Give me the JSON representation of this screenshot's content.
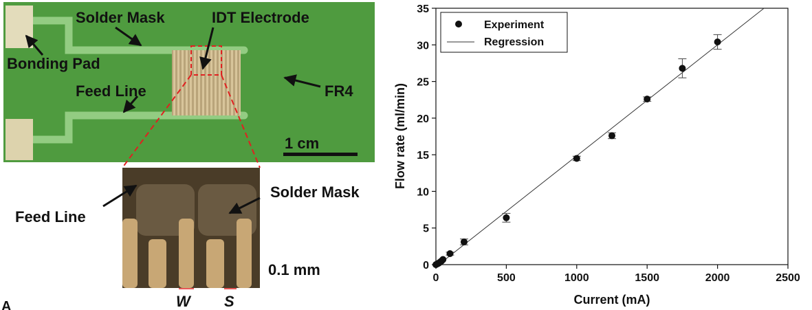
{
  "photo": {
    "labels": {
      "solder_mask": "Solder Mask",
      "idt_electrode": "IDT Electrode",
      "bonding_pad": "Bonding Pad",
      "feed_line": "Feed Line",
      "fr4": "FR4",
      "scale": "1 cm"
    },
    "colors": {
      "board": "#4e9a3f",
      "trace": "#8ec77e",
      "pad": "#d9d2b0",
      "idt": "#c9b68c"
    }
  },
  "micro": {
    "labels": {
      "feed_line": "Feed Line",
      "solder_mask": "Solder Mask",
      "scale": "0.1 mm",
      "w": "W",
      "s": "S"
    },
    "colors": {
      "background": "#5a4a32",
      "finger": "#c9ab7a",
      "mask": "#6f5e45"
    }
  },
  "panel_letter": "A",
  "chart_data": {
    "type": "scatter",
    "xlabel": "Current (mA)",
    "ylabel": "Flow rate (ml/min)",
    "xlim": [
      0,
      2500
    ],
    "ylim": [
      0,
      35
    ],
    "xticks": [
      0,
      500,
      1000,
      1500,
      2000,
      2500
    ],
    "yticks": [
      0,
      5,
      10,
      15,
      20,
      25,
      30,
      35
    ],
    "grid": false,
    "legend_placement": "top-left",
    "series": [
      {
        "name": "Experiment",
        "kind": "points",
        "x": [
          0,
          10,
          20,
          30,
          40,
          50,
          100,
          200,
          500,
          1000,
          1250,
          1500,
          1750,
          2000
        ],
        "y": [
          0.0,
          0.1,
          0.2,
          0.35,
          0.5,
          0.7,
          1.5,
          3.1,
          6.4,
          14.5,
          17.6,
          22.6,
          26.8,
          30.4
        ],
        "err": [
          0,
          0,
          0,
          0,
          0,
          0,
          0.2,
          0.4,
          0.6,
          0.3,
          0.4,
          0.3,
          1.3,
          1.0
        ]
      },
      {
        "name": "Regression",
        "kind": "line",
        "x": [
          0,
          2330
        ],
        "y": [
          -0.3,
          35
        ]
      }
    ]
  }
}
